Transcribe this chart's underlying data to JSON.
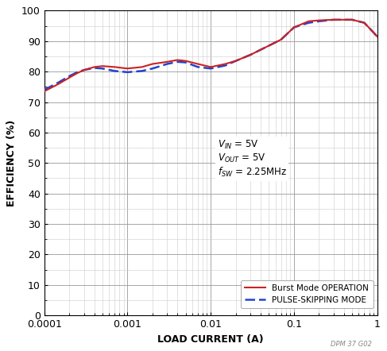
{
  "title": "",
  "xlabel": "LOAD CURRENT (A)",
  "ylabel": "EFFICIENCY (%)",
  "xlim": [
    0.0001,
    1
  ],
  "ylim": [
    0,
    100
  ],
  "yticks": [
    0,
    10,
    20,
    30,
    40,
    50,
    60,
    70,
    80,
    90,
    100
  ],
  "burst_x": [
    0.0001,
    0.00015,
    0.0002,
    0.00025,
    0.0003,
    0.0004,
    0.0005,
    0.0007,
    0.001,
    0.0015,
    0.002,
    0.003,
    0.004,
    0.005,
    0.007,
    0.01,
    0.015,
    0.02,
    0.03,
    0.05,
    0.07,
    0.1,
    0.15,
    0.2,
    0.3,
    0.5,
    0.7,
    1.0
  ],
  "burst_y": [
    73.5,
    76.0,
    78.0,
    79.5,
    80.5,
    81.5,
    81.8,
    81.5,
    81.0,
    81.5,
    82.5,
    83.2,
    83.8,
    83.5,
    82.5,
    81.5,
    82.5,
    83.5,
    85.5,
    88.5,
    90.5,
    94.5,
    96.5,
    96.8,
    97.0,
    97.0,
    96.0,
    91.5
  ],
  "pulse_x": [
    0.0001,
    0.00015,
    0.0002,
    0.00025,
    0.0003,
    0.0004,
    0.0005,
    0.0007,
    0.001,
    0.0015,
    0.002,
    0.003,
    0.004,
    0.005,
    0.007,
    0.01,
    0.015,
    0.02,
    0.03,
    0.05,
    0.07,
    0.1,
    0.15,
    0.2,
    0.3,
    0.5,
    0.7,
    1.0
  ],
  "pulse_y": [
    74.0,
    76.5,
    78.5,
    79.8,
    80.5,
    81.2,
    81.0,
    80.2,
    79.8,
    80.2,
    81.0,
    82.5,
    83.2,
    83.0,
    81.5,
    81.0,
    82.0,
    83.5,
    85.5,
    88.5,
    90.5,
    94.5,
    96.0,
    96.5,
    97.0,
    97.0,
    96.0,
    91.5
  ],
  "burst_color": "#cc2222",
  "pulse_color": "#2244cc",
  "watermark": "DPM 37 G02",
  "background_color": "#ffffff",
  "grid_major_color": "#999999",
  "grid_minor_color": "#cccccc",
  "ann_vin": "V",
  "ann_vout": "V",
  "ann_fsw": "2.25MHz",
  "legend_burst": "Burst Mode OPERATION",
  "legend_pulse": "PULSE-SKIPPING MODE"
}
